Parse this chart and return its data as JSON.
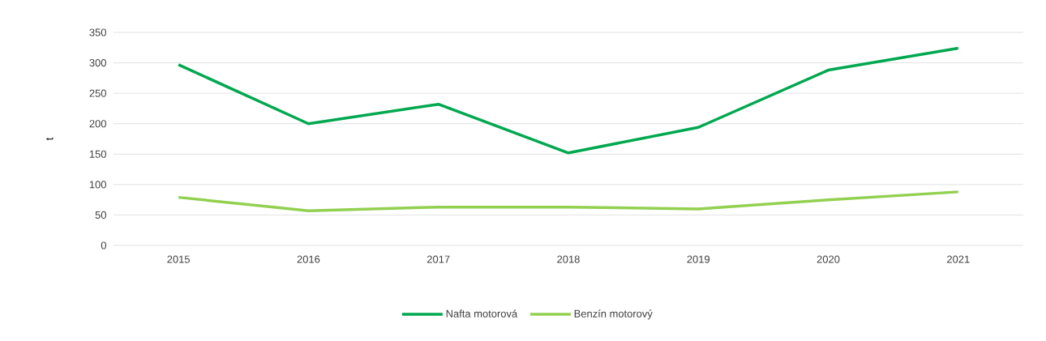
{
  "chart_data": {
    "type": "line",
    "ylabel": "t",
    "categories": [
      "2015",
      "2016",
      "2017",
      "2018",
      "2019",
      "2020",
      "2021"
    ],
    "series": [
      {
        "name": "Nafta motorová",
        "color": "#00a84f",
        "values": [
          297,
          200,
          232,
          152,
          194,
          288,
          324
        ]
      },
      {
        "name": "Benzín motorový",
        "color": "#92d050",
        "values": [
          79,
          57,
          63,
          63,
          60,
          75,
          88
        ]
      }
    ],
    "ylim": [
      0,
      350
    ],
    "yticks": [
      0,
      50,
      100,
      150,
      200,
      250,
      300,
      350
    ],
    "grid": "y",
    "legend": "bottom"
  }
}
